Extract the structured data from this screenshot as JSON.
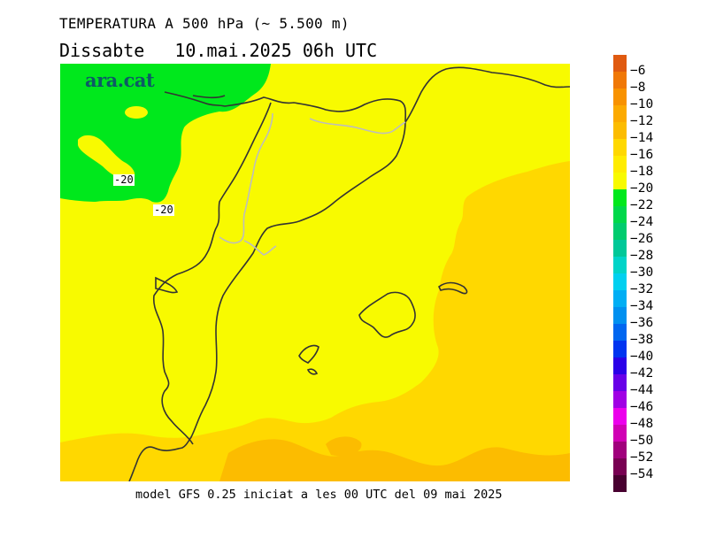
{
  "header": {
    "title": "TEMPERATURA A 500 hPa (~ 5.500 m)",
    "day": "Dissabte",
    "datetime": "10.mai.2025 06h UTC"
  },
  "logo": {
    "text": "ara.cat"
  },
  "map": {
    "contour_labels": [
      "-20",
      "-20"
    ],
    "field_colors": {
      "cold_region": "#00e81c",
      "mid_region": "#f8fa00",
      "warm_region": "#ffd800",
      "warmest_region": "#fcbc00",
      "coastline": "#333333",
      "border": "#bdbdbd"
    }
  },
  "footer": {
    "text": "model GFS 0.25 iniciat a les 00 UTC del 09 mai 2025"
  },
  "colorbar": {
    "labels": [
      "-6",
      "-8",
      "-10",
      "-12",
      "-14",
      "-16",
      "-18",
      "-20",
      "-22",
      "-24",
      "-26",
      "-28",
      "-30",
      "-32",
      "-34",
      "-36",
      "-38",
      "-40",
      "-42",
      "-44",
      "-46",
      "-48",
      "-50",
      "-52",
      "-54"
    ],
    "colors": [
      "#e05a10",
      "#f07806",
      "#f89200",
      "#fcaa00",
      "#fcbc00",
      "#ffd800",
      "#ffec00",
      "#f8fa00",
      "#00e81c",
      "#00d84a",
      "#00cc6e",
      "#00c898",
      "#00d4c8",
      "#00d0f0",
      "#00aef4",
      "#0090f0",
      "#0066f0",
      "#0034f0",
      "#2a00e8",
      "#6800e8",
      "#a000e4",
      "#ec00ec",
      "#d000b4",
      "#a0007c",
      "#780052",
      "#480030"
    ]
  }
}
